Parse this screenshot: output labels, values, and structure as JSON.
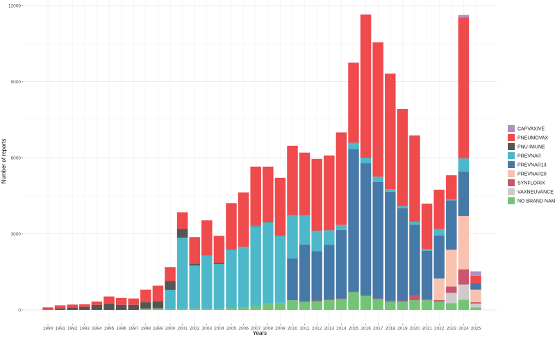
{
  "chart_data": {
    "type": "bar",
    "stacked": true,
    "title": "",
    "xlabel": "Years",
    "ylabel": "Number of reports",
    "ylim": [
      0,
      12000
    ],
    "yticks": [
      0,
      3000,
      6000,
      9000,
      12000
    ],
    "categories": [
      "1990",
      "1991",
      "1992",
      "1993",
      "1994",
      "1995",
      "1996",
      "1997",
      "1998",
      "1999",
      "2000",
      "2001",
      "2002",
      "2003",
      "2004",
      "2005",
      "2006",
      "2007",
      "2008",
      "2009",
      "2010",
      "2011",
      "2012",
      "2013",
      "2014",
      "2015",
      "2016",
      "2017",
      "2018",
      "2019",
      "2020",
      "2021",
      "2022",
      "2023",
      "2024",
      "2025"
    ],
    "legend_position": "right",
    "series": [
      {
        "name": "NO BRAND NAME",
        "color": "#74c476",
        "values": [
          0,
          0,
          0,
          0,
          0,
          0,
          0,
          0,
          50,
          60,
          40,
          50,
          50,
          50,
          50,
          70,
          90,
          150,
          250,
          280,
          380,
          320,
          340,
          380,
          420,
          700,
          550,
          420,
          320,
          330,
          380,
          380,
          330,
          270,
          400,
          100
        ]
      },
      {
        "name": "VAXNEUVANCE",
        "color": "#cccccc",
        "values": [
          0,
          0,
          0,
          0,
          0,
          0,
          0,
          0,
          0,
          0,
          0,
          0,
          0,
          0,
          0,
          0,
          0,
          0,
          0,
          0,
          0,
          0,
          0,
          0,
          0,
          0,
          0,
          0,
          0,
          0,
          0,
          0,
          0,
          400,
          600,
          150
        ]
      },
      {
        "name": "SYNFLORIX",
        "color": "#c9566e",
        "values": [
          0,
          0,
          0,
          0,
          0,
          0,
          0,
          0,
          0,
          0,
          0,
          0,
          0,
          0,
          0,
          0,
          0,
          0,
          0,
          0,
          0,
          10,
          30,
          40,
          30,
          40,
          30,
          30,
          40,
          40,
          180,
          50,
          60,
          250,
          600,
          50
        ]
      },
      {
        "name": "PREVNAR20",
        "color": "#f7c3b0",
        "values": [
          0,
          0,
          0,
          0,
          0,
          0,
          0,
          0,
          0,
          0,
          0,
          0,
          0,
          0,
          0,
          0,
          0,
          0,
          0,
          0,
          0,
          0,
          0,
          0,
          0,
          0,
          0,
          0,
          0,
          0,
          0,
          0,
          850,
          1450,
          2100,
          500
        ]
      },
      {
        "name": "PREVNAR13",
        "color": "#4679a8",
        "values": [
          0,
          0,
          0,
          0,
          0,
          0,
          0,
          0,
          0,
          0,
          0,
          0,
          0,
          0,
          0,
          0,
          0,
          0,
          0,
          0,
          1650,
          2250,
          1950,
          2150,
          2700,
          5600,
          5200,
          4600,
          4300,
          3650,
          2800,
          1900,
          1700,
          1950,
          1750,
          270
        ]
      },
      {
        "name": "PREVNAR",
        "color": "#4db8c9",
        "values": [
          0,
          0,
          0,
          0,
          0,
          0,
          0,
          0,
          0,
          0,
          750,
          2800,
          1700,
          2100,
          1760,
          2300,
          2400,
          3150,
          3200,
          2650,
          1700,
          1150,
          800,
          570,
          200,
          250,
          220,
          200,
          100,
          80,
          120,
          60,
          250,
          40,
          530,
          0
        ]
      },
      {
        "name": "PNU-IMUNE",
        "color": "#555555",
        "values": [
          0,
          60,
          100,
          120,
          200,
          250,
          200,
          200,
          250,
          280,
          350,
          350,
          70,
          0,
          50,
          0,
          0,
          20,
          20,
          20,
          0,
          0,
          0,
          0,
          0,
          0,
          0,
          0,
          0,
          0,
          0,
          0,
          0,
          0,
          0,
          0
        ]
      },
      {
        "name": "PNEUMOVAX",
        "color": "#ef4a4c",
        "values": [
          100,
          120,
          110,
          100,
          130,
          280,
          270,
          250,
          500,
          620,
          550,
          650,
          1050,
          1380,
          1060,
          1840,
          2140,
          2330,
          2180,
          2260,
          2740,
          2470,
          2830,
          2950,
          3650,
          3160,
          5650,
          5300,
          4560,
          3820,
          3400,
          1800,
          1550,
          950,
          5550,
          280
        ]
      },
      {
        "name": "CAPVAXIVE",
        "color": "#b38ec2",
        "values": [
          0,
          0,
          0,
          0,
          0,
          0,
          0,
          0,
          0,
          0,
          0,
          0,
          0,
          0,
          0,
          0,
          0,
          0,
          0,
          0,
          0,
          0,
          0,
          0,
          0,
          0,
          0,
          0,
          0,
          0,
          0,
          0,
          0,
          0,
          100,
          170
        ]
      }
    ],
    "legend_order": [
      "CAPVAXIVE",
      "PNEUMOVAX",
      "PNU-IMUNE",
      "PREVNAR",
      "PREVNAR13",
      "PREVNAR20",
      "SYNFLORIX",
      "VAXNEUVANCE",
      "NO BRAND NAME"
    ]
  }
}
